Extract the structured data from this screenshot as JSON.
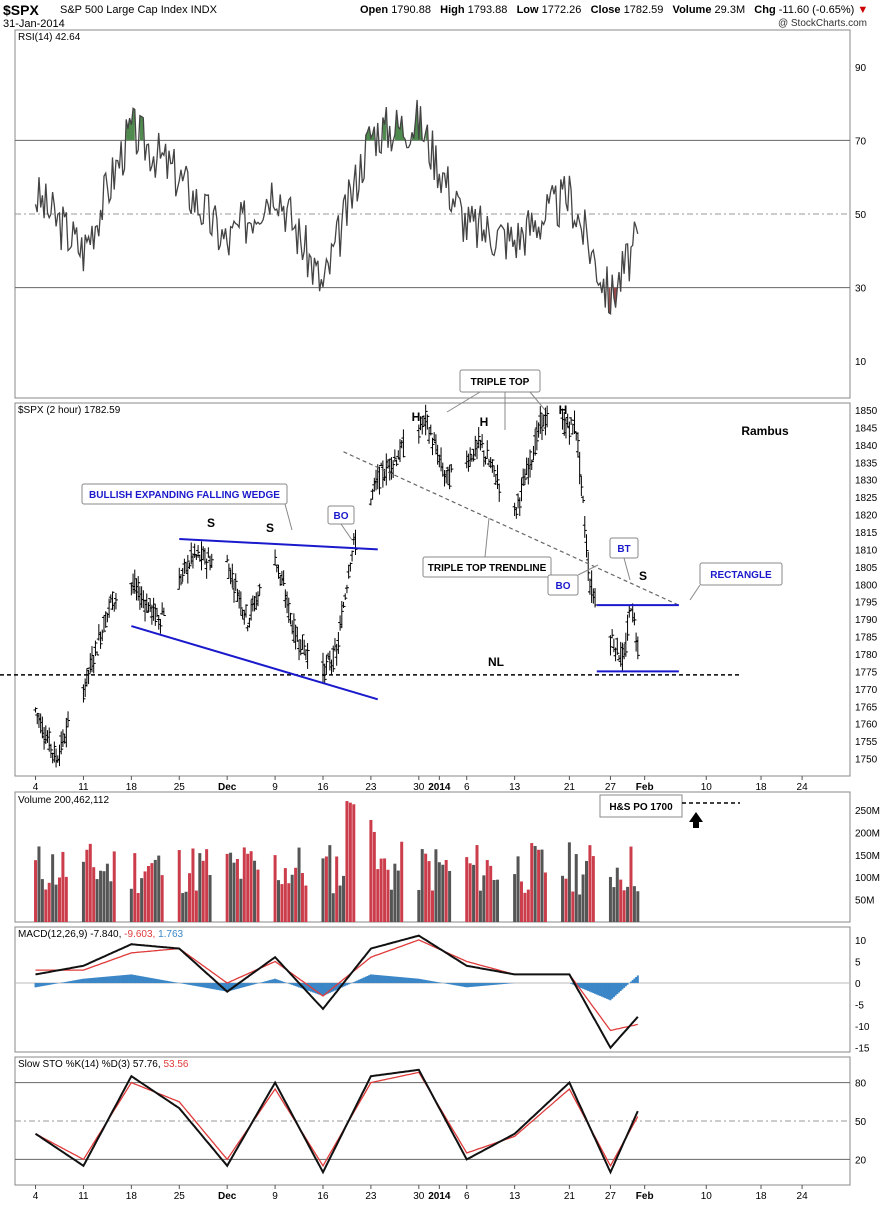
{
  "header": {
    "symbol": "$SPX",
    "name": "S&P 500 Large Cap Index INDX",
    "date": "31-Jan-2014",
    "open_label": "Open",
    "open": "1790.88",
    "high_label": "High",
    "high": "1793.88",
    "low_label": "Low",
    "low": "1772.26",
    "close_label": "Close",
    "close": "1782.59",
    "volume_label": "Volume",
    "volume": "29.3M",
    "chg_label": "Chg",
    "chg": "-11.60 (-0.65%)",
    "credit": "@ StockCharts.com"
  },
  "colors": {
    "up": "#cc3d4c",
    "down": "#555555",
    "annot": "#1a1acc",
    "rsi_fill_high": "#4f8a4f",
    "rsi_fill_low": "#9a4a4a",
    "macd_hist": "#3a86c7",
    "signal": "#e03b3b"
  },
  "chart_data": [
    {
      "type": "line",
      "panel": "rsi",
      "legend": "RSI(14) 42.64",
      "ylim": [
        0,
        100
      ],
      "yticks": [
        10,
        30,
        50,
        70,
        90
      ],
      "reference_lines": [
        30,
        50,
        70
      ],
      "x": [
        "2013-11-04",
        "2013-11-11",
        "2013-11-18",
        "2013-11-25",
        "2013-12-02",
        "2013-12-09",
        "2013-12-16",
        "2013-12-23",
        "2013-12-30",
        "2014-01-06",
        "2014-01-13",
        "2014-01-21",
        "2014-01-27",
        "2014-01-31"
      ],
      "values": [
        55,
        40,
        73,
        60,
        42,
        58,
        30,
        72,
        75,
        47,
        43,
        55,
        27,
        43
      ]
    },
    {
      "type": "candlestick",
      "panel": "price",
      "legend": "$SPX (2 hour) 1782.59",
      "ylim": [
        1745,
        1852
      ],
      "yticks": [
        1750,
        1755,
        1760,
        1765,
        1770,
        1775,
        1780,
        1785,
        1790,
        1795,
        1800,
        1805,
        1810,
        1815,
        1820,
        1825,
        1830,
        1835,
        1840,
        1845,
        1850
      ],
      "xtick_labels": [
        "4",
        "11",
        "18",
        "25",
        "Dec",
        "9",
        "16",
        "23",
        "30",
        "2014",
        "6",
        "13",
        "21",
        "27",
        "Feb",
        "10",
        "18",
        "24"
      ],
      "keypoints": [
        {
          "date": "2013-11-04",
          "close": 1764
        },
        {
          "date": "2013-11-07",
          "close": 1750
        },
        {
          "date": "2013-11-11",
          "close": 1770
        },
        {
          "date": "2013-11-15",
          "close": 1795
        },
        {
          "date": "2013-11-18",
          "close": 1800
        },
        {
          "date": "2013-11-22",
          "close": 1790
        },
        {
          "date": "2013-11-27",
          "close": 1808
        },
        {
          "date": "2013-12-02",
          "close": 1806
        },
        {
          "date": "2013-12-05",
          "close": 1790
        },
        {
          "date": "2013-12-09",
          "close": 1808
        },
        {
          "date": "2013-12-12",
          "close": 1785
        },
        {
          "date": "2013-12-16",
          "close": 1775
        },
        {
          "date": "2013-12-18",
          "close": 1780
        },
        {
          "date": "2013-12-20",
          "close": 1808
        },
        {
          "date": "2013-12-24",
          "close": 1830
        },
        {
          "date": "2013-12-31",
          "close": 1847
        },
        {
          "date": "2014-01-03",
          "close": 1830
        },
        {
          "date": "2014-01-08",
          "close": 1840
        },
        {
          "date": "2014-01-13",
          "close": 1820
        },
        {
          "date": "2014-01-17",
          "close": 1847
        },
        {
          "date": "2014-01-22",
          "close": 1845
        },
        {
          "date": "2014-01-24",
          "close": 1800
        },
        {
          "date": "2014-01-27",
          "close": 1785
        },
        {
          "date": "2014-01-29",
          "close": 1778
        },
        {
          "date": "2014-01-30",
          "close": 1795
        },
        {
          "date": "2014-01-31",
          "close": 1782.59
        }
      ],
      "annotations": {
        "wedge": "BULLISH EXPANDING FALLING WEDGE",
        "s": "S",
        "h": "H",
        "bo": "BO",
        "bt": "BT",
        "triple_top": "TRIPLE TOP",
        "triple_top_trendline": "TRIPLE TOP TRENDLINE",
        "rectangle": "RECTANGLE",
        "nl": "NL",
        "author": "Rambus",
        "hs_po": "H&S PO 1700"
      }
    },
    {
      "type": "bar",
      "panel": "volume",
      "legend": "Volume 200,462,112",
      "ylim": [
        0,
        290
      ],
      "yticks": [
        50,
        100,
        150,
        200,
        250
      ],
      "ytick_labels": [
        "50M",
        "100M",
        "150M",
        "200M",
        "250M"
      ],
      "typical_range": [
        60,
        180
      ],
      "spikes": [
        {
          "date": "2013-12-20",
          "value": 280
        },
        {
          "date": "2013-12-23",
          "value": 230
        }
      ]
    },
    {
      "type": "line",
      "panel": "macd",
      "legend": "MACD(12,26,9) -7.840, -9.603, 1.763",
      "ylim": [
        -16,
        13
      ],
      "yticks": [
        -15,
        -10,
        -5,
        0,
        5,
        10
      ],
      "series": [
        {
          "name": "MACD",
          "values": [
            2,
            4,
            9,
            8,
            -2,
            6,
            -6,
            8,
            11,
            4,
            2,
            2,
            -15,
            -7.84
          ]
        },
        {
          "name": "Signal",
          "values": [
            3,
            3,
            7,
            8,
            0,
            5,
            -3,
            6,
            10,
            5,
            2,
            2,
            -11,
            -9.603
          ]
        }
      ],
      "histogram_last": 1.763
    },
    {
      "type": "line",
      "panel": "sto",
      "legend": "Slow STO %K(14) %D(3) 57.76, 53.56",
      "ylim": [
        0,
        100
      ],
      "yticks": [
        20,
        50,
        80
      ],
      "reference_lines": [
        20,
        50,
        80
      ],
      "series": [
        {
          "name": "%K",
          "values": [
            40,
            15,
            85,
            60,
            15,
            80,
            10,
            85,
            90,
            20,
            40,
            80,
            10,
            57.76
          ]
        },
        {
          "name": "%D",
          "values": [
            40,
            20,
            80,
            65,
            20,
            75,
            15,
            80,
            88,
            25,
            38,
            75,
            15,
            53.56
          ]
        }
      ]
    }
  ]
}
